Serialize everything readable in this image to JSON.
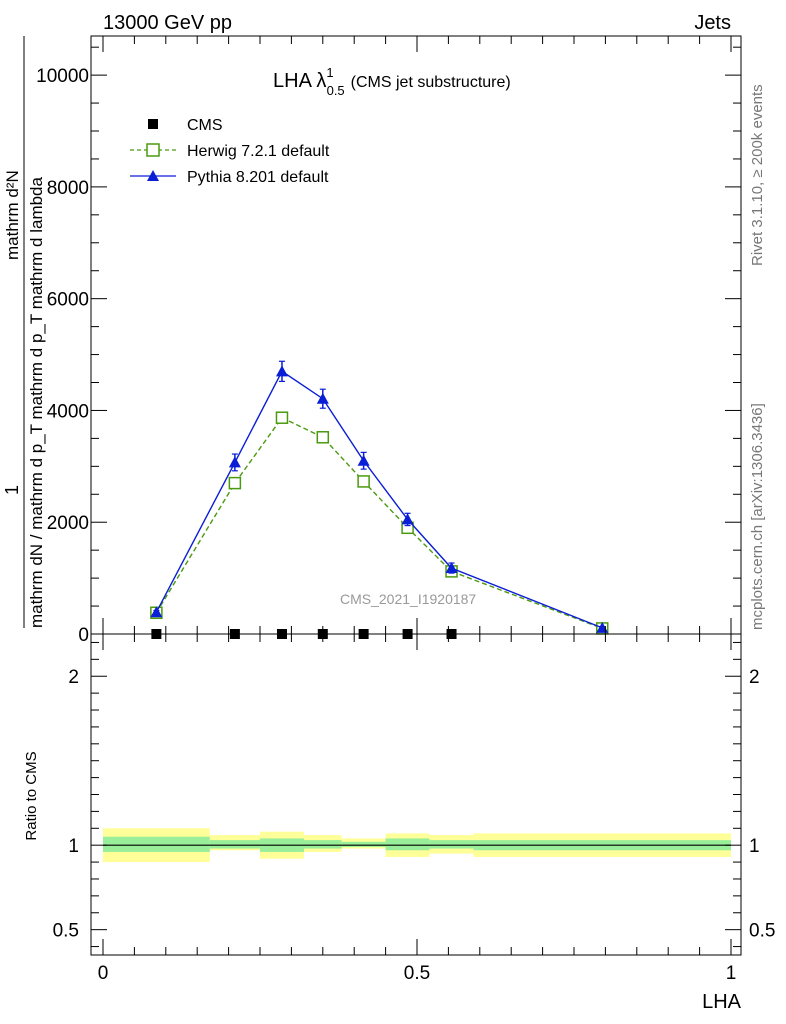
{
  "header": {
    "energy_label": "13000 GeV pp",
    "category_label": "Jets",
    "side_rivet": "Rivet 3.1.10, ≥ 200k events",
    "side_mcplots": "mcplots.cern.ch [arXiv:1306.3436]",
    "watermark": "CMS_2021_I1920187"
  },
  "chart_data": [
    {
      "type": "line",
      "title_main": "LHA λ",
      "title_sup": "1",
      "title_sub": "0.5",
      "title_rest": "(CMS jet substructure)",
      "ylabel_numerator": "1",
      "ylabel_denominator": "mathrm dN / mathrm d p_T mathrm d p_T mathrm d lambda",
      "ylabel_secondary": "mathrm d²N",
      "ylim": [
        0,
        10700
      ],
      "yticks": [
        {
          "v": 0,
          "label": "0"
        },
        {
          "v": 2000,
          "label": "2000"
        },
        {
          "v": 4000,
          "label": "4000"
        },
        {
          "v": 6000,
          "label": "6000"
        },
        {
          "v": 8000,
          "label": "8000"
        },
        {
          "v": 10000,
          "label": "10000"
        }
      ],
      "xlim": [
        0,
        1
      ],
      "grid": false,
      "legend_position": "top-left",
      "series": [
        {
          "name": "CMS",
          "color": "#000000",
          "marker": "square-filled",
          "x": [
            0.085,
            0.21,
            0.285,
            0.35,
            0.415,
            0.485,
            0.555
          ],
          "y": [
            0,
            0,
            0,
            0,
            0,
            0,
            0
          ]
        },
        {
          "name": "Herwig 7.2.1 default",
          "color": "#4a9a0e",
          "marker": "square-open",
          "dash": true,
          "x": [
            0.085,
            0.21,
            0.285,
            0.35,
            0.415,
            0.485,
            0.555,
            0.795
          ],
          "y": [
            380,
            2700,
            3870,
            3520,
            2730,
            1900,
            1120,
            100
          ]
        },
        {
          "name": "Pythia 8.201 default",
          "color": "#0a1ed6",
          "marker": "triangle-filled",
          "dash": false,
          "x": [
            0.085,
            0.21,
            0.285,
            0.35,
            0.415,
            0.485,
            0.555,
            0.795
          ],
          "y": [
            390,
            3070,
            4700,
            4210,
            3100,
            2050,
            1180,
            110
          ],
          "yerr": [
            30,
            150,
            180,
            170,
            150,
            110,
            90,
            20
          ]
        }
      ]
    },
    {
      "type": "area",
      "ylabel": "Ratio to CMS",
      "xlabel": "LHA",
      "ylim": [
        0.35,
        2.25
      ],
      "yticks": [
        {
          "v": 0.5,
          "label": "0.5"
        },
        {
          "v": 1,
          "label": "1"
        },
        {
          "v": 2,
          "label": "2"
        }
      ],
      "xticks": [
        {
          "v": 0,
          "label": "0"
        },
        {
          "v": 0.5,
          "label": "0.5"
        },
        {
          "v": 1,
          "label": "1"
        }
      ],
      "xlim": [
        0,
        1
      ],
      "band_colors": {
        "outer": "#ffff99",
        "inner": "#99ee99"
      },
      "bins": [
        {
          "x0": 0.0,
          "x1": 0.17,
          "outer": [
            0.9,
            1.1
          ],
          "inner": [
            0.96,
            1.05
          ]
        },
        {
          "x0": 0.17,
          "x1": 0.25,
          "outer": [
            0.97,
            1.06
          ],
          "inner": [
            0.98,
            1.03
          ]
        },
        {
          "x0": 0.25,
          "x1": 0.32,
          "outer": [
            0.92,
            1.08
          ],
          "inner": [
            0.96,
            1.04
          ]
        },
        {
          "x0": 0.32,
          "x1": 0.38,
          "outer": [
            0.96,
            1.06
          ],
          "inner": [
            0.98,
            1.03
          ]
        },
        {
          "x0": 0.38,
          "x1": 0.45,
          "outer": [
            0.98,
            1.04
          ],
          "inner": [
            0.99,
            1.02
          ]
        },
        {
          "x0": 0.45,
          "x1": 0.52,
          "outer": [
            0.93,
            1.07
          ],
          "inner": [
            0.97,
            1.04
          ]
        },
        {
          "x0": 0.52,
          "x1": 0.59,
          "outer": [
            0.95,
            1.06
          ],
          "inner": [
            0.98,
            1.03
          ]
        },
        {
          "x0": 0.59,
          "x1": 1.0,
          "outer": [
            0.93,
            1.07
          ],
          "inner": [
            0.97,
            1.03
          ]
        }
      ]
    }
  ]
}
